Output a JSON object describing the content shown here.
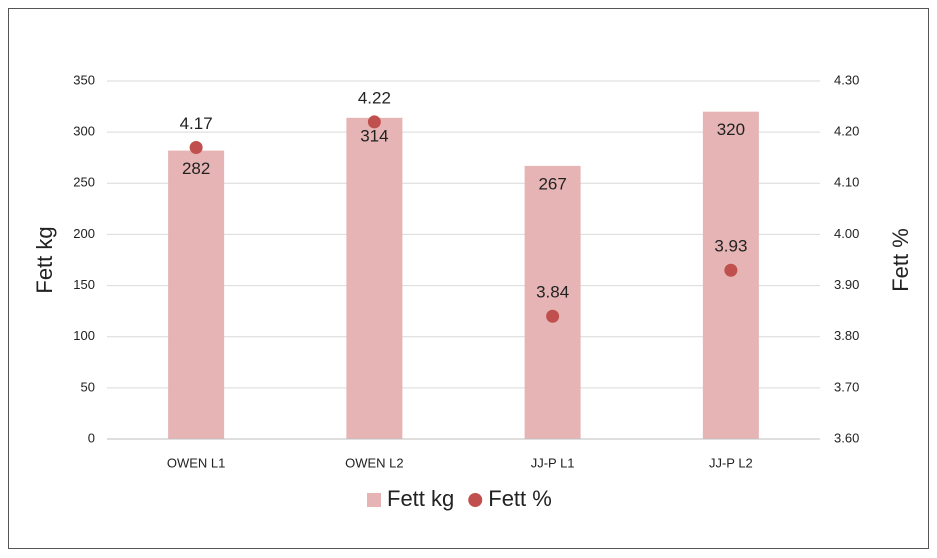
{
  "chart_data": {
    "type": "bar",
    "categories": [
      "OWEN L1",
      "OWEN L2",
      "JJ-P L1",
      "JJ-P L2"
    ],
    "series": [
      {
        "name": "Fett kg",
        "type": "bar",
        "color": "#e6b4b4",
        "values": [
          282,
          314,
          267,
          320
        ]
      },
      {
        "name": "Fett %",
        "type": "scatter",
        "axis": "y2",
        "color": "#c0504d",
        "values": [
          4.17,
          4.22,
          3.84,
          3.93
        ]
      }
    ],
    "ylabel": "Fett kg",
    "y2label": "Fett %",
    "ylim": [
      0,
      350
    ],
    "yticks": [
      0,
      50,
      100,
      150,
      200,
      250,
      300,
      350
    ],
    "y2lim": [
      3.6,
      4.3
    ],
    "y2ticks": [
      {
        "value": 3.6,
        "label": "3.60"
      },
      {
        "value": 3.7,
        "label": "3.70"
      },
      {
        "value": 3.8,
        "label": "3.80"
      },
      {
        "value": 3.9,
        "label": "3.90"
      },
      {
        "value": 4.0,
        "label": "4.00"
      },
      {
        "value": 4.1,
        "label": "4.10"
      },
      {
        "value": 4.2,
        "label": "4.20"
      },
      {
        "value": 4.3,
        "label": "4.30"
      }
    ],
    "grid": true,
    "legend": "bottom"
  }
}
